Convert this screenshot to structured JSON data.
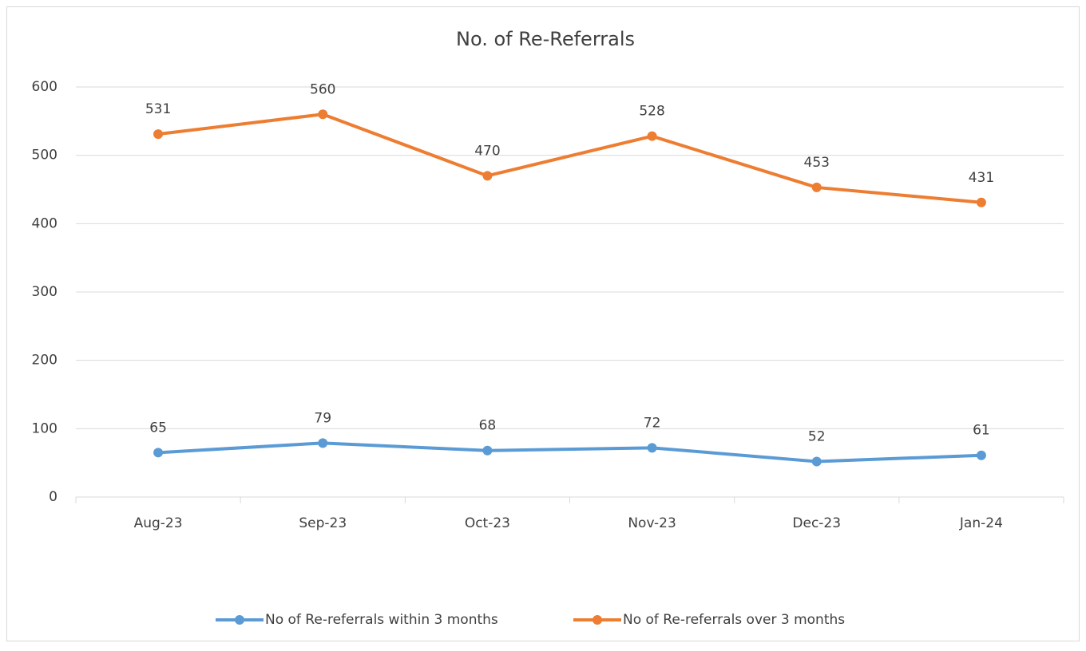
{
  "chart_data": {
    "type": "line",
    "title": "No. of Re-Referrals",
    "categories": [
      "Aug-23",
      "Sep-23",
      "Oct-23",
      "Nov-23",
      "Dec-23",
      "Jan-24"
    ],
    "series": [
      {
        "name": "No of Re-referrals within 3 months",
        "color": "#5b9bd5",
        "values": [
          65,
          79,
          68,
          72,
          52,
          61
        ]
      },
      {
        "name": "No of Re-referrals over 3 months",
        "color": "#ed7d31",
        "values": [
          531,
          560,
          470,
          528,
          453,
          431
        ]
      }
    ],
    "ylim": [
      0,
      600
    ],
    "yticks": [
      0,
      100,
      200,
      300,
      400,
      500,
      600
    ],
    "grid": true,
    "legend": "bottom"
  }
}
